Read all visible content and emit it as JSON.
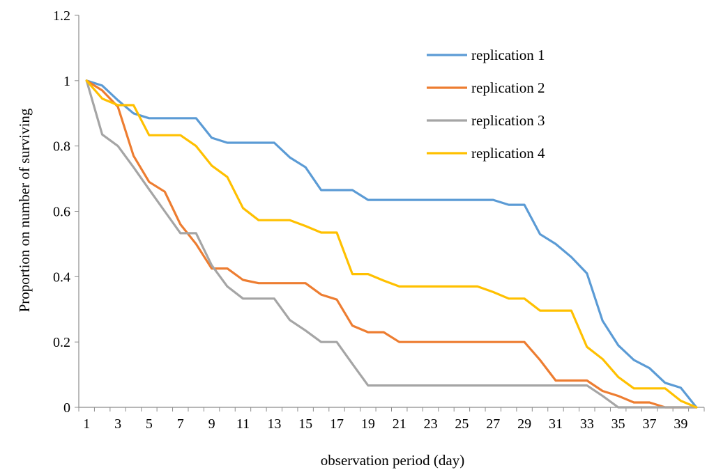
{
  "chart_data": {
    "type": "line",
    "title": "",
    "xlabel": "observation period (day)",
    "ylabel": "Proportion on number of surviving",
    "x": [
      1,
      2,
      3,
      4,
      5,
      6,
      7,
      8,
      9,
      10,
      11,
      12,
      13,
      14,
      15,
      16,
      17,
      18,
      19,
      20,
      21,
      22,
      23,
      24,
      25,
      26,
      27,
      28,
      29,
      30,
      31,
      32,
      33,
      34,
      35,
      36,
      37,
      38,
      39,
      40
    ],
    "xtick_labels": [
      "1",
      "3",
      "5",
      "7",
      "9",
      "11",
      "13",
      "15",
      "17",
      "19",
      "21",
      "23",
      "25",
      "27",
      "29",
      "31",
      "33",
      "35",
      "37",
      "39"
    ],
    "xlim": [
      1,
      40
    ],
    "ylim": [
      0,
      1.2
    ],
    "ytick_labels": [
      "0",
      "0.2",
      "0.4",
      "0.6",
      "0.8",
      "1",
      "1.2"
    ],
    "grid": false,
    "legend_position": "top-right",
    "series": [
      {
        "name": "replication 1",
        "color": "#5b9bd5",
        "values": [
          1,
          0.985,
          0.94,
          0.9,
          0.885,
          0.885,
          0.885,
          0.885,
          0.825,
          0.81,
          0.81,
          0.81,
          0.81,
          0.765,
          0.735,
          0.665,
          0.665,
          0.665,
          0.635,
          0.635,
          0.635,
          0.635,
          0.635,
          0.635,
          0.635,
          0.635,
          0.635,
          0.62,
          0.62,
          0.53,
          0.5,
          0.46,
          0.41,
          0.265,
          0.19,
          0.145,
          0.12,
          0.075,
          0.06,
          0
        ]
      },
      {
        "name": "replication 2",
        "color": "#ed7d31",
        "values": [
          1,
          0.97,
          0.92,
          0.77,
          0.69,
          0.66,
          0.56,
          0.5,
          0.425,
          0.425,
          0.39,
          0.38,
          0.38,
          0.38,
          0.38,
          0.345,
          0.33,
          0.25,
          0.23,
          0.23,
          0.2,
          0.2,
          0.2,
          0.2,
          0.2,
          0.2,
          0.2,
          0.2,
          0.2,
          0.145,
          0.082,
          0.082,
          0.082,
          0.05,
          0.035,
          0.015,
          0.015,
          0,
          0,
          0
        ]
      },
      {
        "name": "replication 3",
        "color": "#a5a5a5",
        "values": [
          1,
          0.835,
          0.8,
          0.735,
          0.667,
          0.6,
          0.533,
          0.533,
          0.435,
          0.37,
          0.333,
          0.333,
          0.333,
          0.267,
          0.235,
          0.2,
          0.2,
          0.133,
          0.067,
          0.067,
          0.067,
          0.067,
          0.067,
          0.067,
          0.067,
          0.067,
          0.067,
          0.067,
          0.067,
          0.067,
          0.067,
          0.067,
          0.067,
          0.035,
          0,
          0,
          0,
          0,
          0,
          0
        ]
      },
      {
        "name": "replication 4",
        "color": "#ffc000",
        "values": [
          1,
          0.945,
          0.925,
          0.925,
          0.833,
          0.833,
          0.833,
          0.8,
          0.74,
          0.705,
          0.61,
          0.573,
          0.573,
          0.573,
          0.555,
          0.535,
          0.535,
          0.408,
          0.408,
          0.388,
          0.37,
          0.37,
          0.37,
          0.37,
          0.37,
          0.37,
          0.353,
          0.333,
          0.333,
          0.296,
          0.296,
          0.296,
          0.185,
          0.148,
          0.093,
          0.058,
          0.058,
          0.058,
          0.02,
          0
        ]
      }
    ]
  }
}
